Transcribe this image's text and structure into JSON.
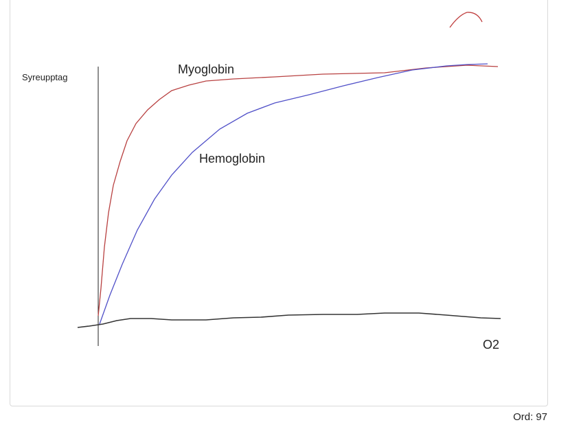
{
  "drawing": {
    "y_axis_label": "Syreupptag",
    "curve_labels": [
      "Myoglobin",
      "Hemoglobin"
    ],
    "x_axis_label": "O2"
  },
  "footer": {
    "word_count_label": "Ord:",
    "word_count": 97
  }
}
